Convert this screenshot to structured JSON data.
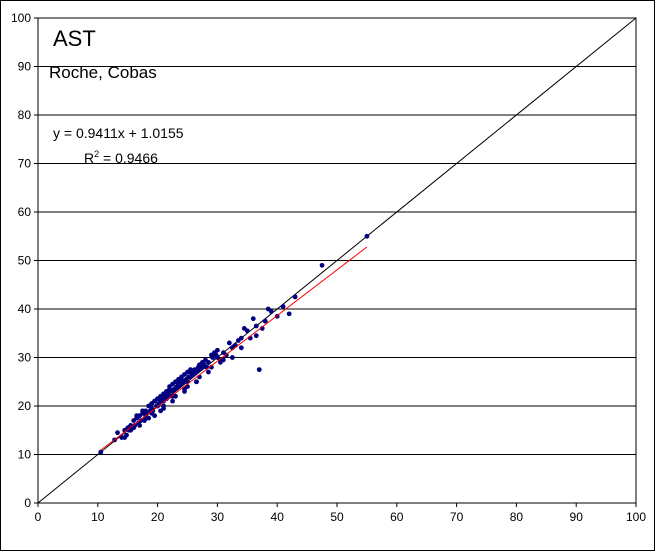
{
  "chart_data": {
    "type": "scatter",
    "title": "AST",
    "subtitle": "Roche, Cobas",
    "xlabel": "",
    "ylabel": "",
    "xlim": [
      0,
      100
    ],
    "ylim": [
      0,
      100
    ],
    "x_ticks": [
      "0",
      "10",
      "20",
      "30",
      "40",
      "50",
      "60",
      "70",
      "80",
      "90",
      "100"
    ],
    "y_ticks": [
      "0",
      "10",
      "20",
      "30",
      "40",
      "50",
      "60",
      "70",
      "80",
      "90",
      "100"
    ],
    "grid": "horizontal",
    "legend": "none",
    "annotations": {
      "equation": "y = 0.9411x + 1.0155",
      "r2_prefix": "R",
      "r2_exp": "2",
      "r2_value": " = 0.9466"
    },
    "identity_line": {
      "from": [
        0,
        0
      ],
      "to": [
        100,
        100
      ],
      "color": "#000000"
    },
    "trendline": {
      "slope": 0.9411,
      "intercept": 1.0155,
      "x_range": [
        10.5,
        55
      ],
      "color": "#ff0000"
    },
    "series": [
      {
        "color": "#000080",
        "x": [
          10.5,
          12.8,
          13.3,
          14.0,
          14.5,
          14.8,
          15.0,
          15.2,
          15.5,
          15.8,
          16.0,
          16.2,
          16.5,
          16.8,
          17.0,
          17.2,
          17.5,
          17.8,
          18.0,
          18.0,
          18.2,
          18.5,
          18.8,
          19.0,
          19.0,
          19.2,
          19.5,
          19.8,
          20.0,
          20.0,
          20.2,
          20.5,
          20.5,
          20.8,
          21.0,
          21.0,
          21.2,
          21.5,
          21.5,
          21.8,
          22.0,
          22.0,
          22.2,
          22.5,
          22.5,
          22.8,
          23.0,
          23.0,
          23.2,
          23.5,
          23.5,
          23.8,
          24.0,
          24.0,
          24.2,
          24.5,
          24.5,
          24.8,
          25.0,
          25.0,
          25.2,
          25.5,
          25.5,
          25.8,
          26.0,
          26.0,
          26.2,
          26.5,
          26.8,
          27.0,
          27.0,
          27.2,
          27.5,
          27.8,
          28.0,
          28.2,
          28.5,
          29.0,
          29.2,
          29.5,
          29.8,
          30.0,
          30.0,
          30.5,
          31.0,
          31.5,
          32.0,
          32.5,
          33.0,
          33.5,
          34.0,
          34.5,
          35.0,
          35.5,
          36.0,
          36.5,
          37.0,
          38.0,
          38.5,
          39.0,
          40.0,
          41.0,
          42.0,
          43.0,
          47.5,
          55.0,
          16.5,
          17.5,
          18.5,
          19.5,
          20.5,
          21.5,
          22.5,
          23.5,
          24.5,
          25.5,
          26.5,
          27.5,
          19.0,
          20.0,
          21.0,
          22.0,
          23.0,
          24.0,
          25.0,
          26.0,
          14.5,
          15.5,
          17.0,
          18.0,
          22.5,
          23.5,
          24.5,
          26.5,
          28.5,
          30.5,
          32.5,
          36.5,
          37.5,
          34.0,
          31.0,
          29.0,
          27.0,
          21.0,
          19.5,
          16.0
        ],
        "y": [
          10.5,
          13.0,
          14.5,
          13.5,
          15.0,
          14.0,
          15.5,
          15.0,
          16.0,
          15.5,
          17.0,
          16.0,
          17.5,
          16.5,
          18.0,
          17.0,
          18.5,
          17.0,
          19.0,
          18.0,
          18.5,
          20.0,
          19.0,
          20.5,
          19.5,
          19.0,
          21.0,
          20.0,
          21.5,
          20.0,
          20.5,
          22.0,
          21.0,
          21.5,
          22.5,
          21.0,
          22.0,
          23.0,
          21.5,
          22.5,
          24.0,
          22.0,
          23.0,
          24.5,
          23.0,
          23.5,
          25.0,
          23.5,
          24.0,
          25.5,
          24.0,
          24.5,
          26.0,
          24.5,
          25.0,
          26.5,
          25.0,
          25.5,
          27.0,
          25.0,
          26.0,
          27.5,
          26.0,
          26.5,
          27.0,
          26.5,
          27.5,
          27.0,
          28.0,
          28.5,
          27.5,
          28.0,
          29.0,
          28.5,
          29.5,
          28.0,
          29.0,
          30.5,
          30.0,
          31.0,
          30.5,
          31.5,
          30.0,
          29.5,
          31.0,
          30.5,
          33.0,
          32.0,
          32.5,
          33.5,
          34.0,
          36.0,
          35.5,
          34.0,
          38.0,
          36.5,
          27.5,
          37.5,
          40.0,
          39.5,
          38.5,
          40.5,
          39.0,
          42.5,
          49.0,
          55.0,
          18.0,
          19.0,
          17.5,
          21.0,
          19.0,
          23.0,
          21.0,
          25.0,
          23.0,
          27.0,
          25.0,
          28.0,
          18.5,
          21.5,
          20.0,
          23.5,
          22.0,
          25.5,
          24.0,
          26.5,
          13.5,
          15.0,
          16.0,
          17.5,
          22.0,
          24.5,
          23.5,
          25.0,
          27.0,
          29.0,
          30.0,
          34.5,
          36.0,
          32.0,
          29.5,
          28.0,
          26.0,
          19.5,
          18.0,
          15.5
        ]
      }
    ]
  }
}
